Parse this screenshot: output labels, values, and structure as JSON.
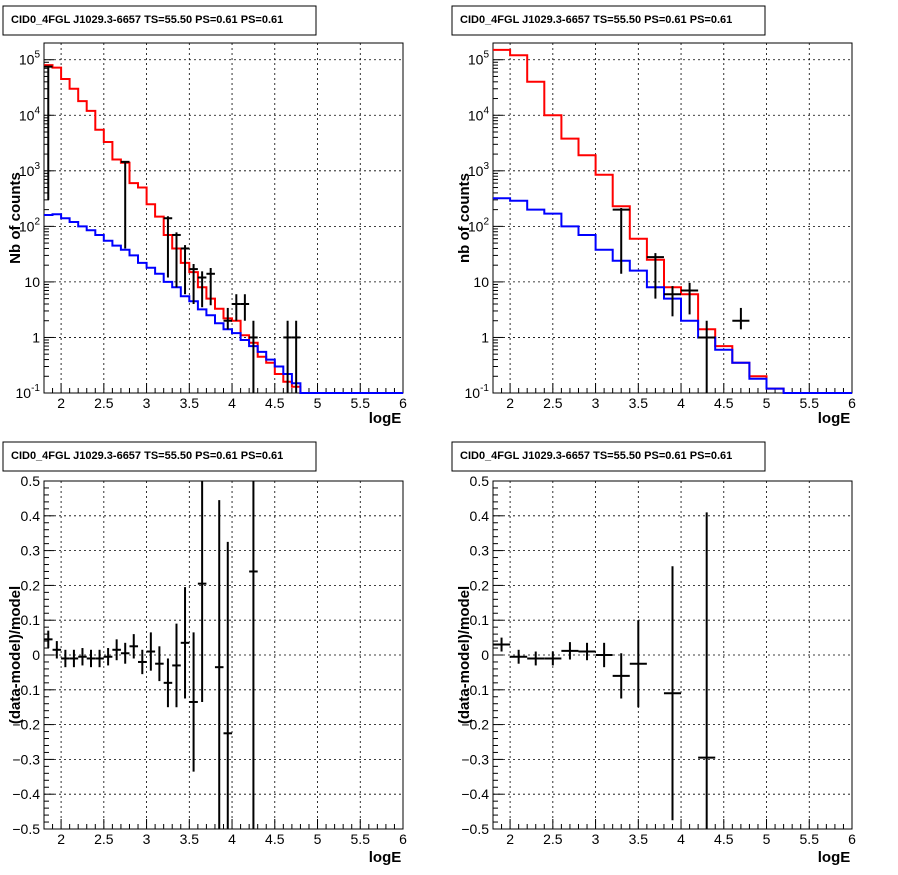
{
  "chart_data": [
    {
      "type": "line",
      "panel": "top-left",
      "title": "CID0_4FGL J1029.3-6657 TS=55.50 PS=0.61 PS=0.61",
      "xlabel": "logE",
      "ylabel": "Nb of counts",
      "xlim": [
        1.8,
        6.0
      ],
      "ylim": [
        0.1,
        200000
      ],
      "yscale": "log",
      "grid": true,
      "x_ticks": [
        "2",
        "2.5",
        "3",
        "3.5",
        "4",
        "4.5",
        "5",
        "5.5",
        "6"
      ],
      "y_ticks": [
        {
          "label": "10",
          "sup": "-1"
        },
        {
          "label": "1",
          "sup": ""
        },
        {
          "label": "10",
          "sup": ""
        },
        {
          "label": "10",
          "sup": "2"
        },
        {
          "label": "10",
          "sup": "3"
        },
        {
          "label": "10",
          "sup": "4"
        },
        {
          "label": "10",
          "sup": "5"
        }
      ],
      "colors": {
        "total_model": "#ff0000",
        "background": "#0000ff",
        "data": "#000000"
      },
      "series": [
        {
          "kind": "step",
          "color": "#ff0000",
          "edges": [
            1.8,
            1.9,
            2.0,
            2.1,
            2.2,
            2.3,
            2.4,
            2.5,
            2.6,
            2.7,
            2.8,
            2.9,
            3.0,
            3.1,
            3.2,
            3.3,
            3.4,
            3.5,
            3.6,
            3.7,
            3.8,
            3.9,
            4.0,
            4.1,
            4.2,
            4.3,
            4.4,
            4.5,
            4.6,
            4.7,
            4.8,
            4.9,
            5.0,
            5.1,
            5.2,
            5.3,
            5.4,
            5.5,
            5.6,
            5.7,
            5.8,
            5.9,
            6.0
          ],
          "values": [
            80000,
            72000,
            45000,
            30000,
            18000,
            12000,
            5500,
            3300,
            1600,
            1400,
            600,
            500,
            250,
            150,
            70,
            40,
            22,
            15,
            8,
            5,
            3.3,
            2.2,
            2.0,
            1.1,
            0.8,
            0.45,
            0.35,
            0.22,
            0.16,
            0.13,
            0.1,
            0.1,
            0.1,
            0.1,
            0.1,
            0.1,
            0.1,
            0.1,
            0.1,
            0.1,
            0.1,
            0.1
          ]
        },
        {
          "kind": "step",
          "color": "#0000ff",
          "edges": [
            1.8,
            1.9,
            2.0,
            2.1,
            2.2,
            2.3,
            2.4,
            2.5,
            2.6,
            2.7,
            2.8,
            2.9,
            3.0,
            3.1,
            3.2,
            3.3,
            3.4,
            3.5,
            3.6,
            3.7,
            3.8,
            3.9,
            4.0,
            4.1,
            4.2,
            4.3,
            4.4,
            4.5,
            4.6,
            4.7,
            4.8,
            4.9,
            5.0,
            5.1,
            5.2,
            5.3,
            5.4,
            5.5,
            5.6,
            5.7,
            5.8,
            5.9,
            6.0
          ],
          "values": [
            160,
            165,
            140,
            120,
            100,
            85,
            70,
            55,
            45,
            38,
            30,
            22,
            18,
            14,
            10,
            8,
            5.5,
            4.5,
            3.2,
            2.5,
            1.8,
            1.4,
            1.2,
            0.9,
            0.7,
            0.55,
            0.4,
            0.3,
            0.22,
            0.15,
            0.1,
            0.1,
            0.1,
            0.1,
            0.1,
            0.1,
            0.1,
            0.1,
            0.1,
            0.1,
            0.1,
            0.1
          ]
        }
      ],
      "points": [
        {
          "x": 1.85,
          "y": 75000,
          "xerr": 0.05,
          "yerr_lo": 74700,
          "yerr_hi": 75300
        },
        {
          "x": 2.75,
          "y": 1450,
          "xerr": 0.05,
          "yerr_lo": 1410,
          "yerr_hi": 1490
        },
        {
          "x": 3.25,
          "y": 140,
          "xerr": 0.05,
          "yerr_lo": 128,
          "yerr_hi": 152
        },
        {
          "x": 3.35,
          "y": 70,
          "xerr": 0.05,
          "yerr_lo": 62,
          "yerr_hi": 78
        },
        {
          "x": 3.45,
          "y": 40,
          "xerr": 0.05,
          "yerr_lo": 34,
          "yerr_hi": 46
        },
        {
          "x": 3.55,
          "y": 17,
          "xerr": 0.05,
          "yerr_lo": 13,
          "yerr_hi": 21
        },
        {
          "x": 3.65,
          "y": 12,
          "xerr": 0.05,
          "yerr_lo": 8.5,
          "yerr_hi": 15.5
        },
        {
          "x": 3.75,
          "y": 14,
          "xerr": 0.05,
          "yerr_lo": 10.2,
          "yerr_hi": 17.8
        },
        {
          "x": 3.95,
          "y": 2,
          "xerr": 0.05,
          "yerr_lo": 0.6,
          "yerr_hi": 3.4
        },
        {
          "x": 4.05,
          "y": 4,
          "xerr": 0.05,
          "yerr_lo": 2.0,
          "yerr_hi": 6.0
        },
        {
          "x": 4.15,
          "y": 4,
          "xerr": 0.05,
          "yerr_lo": 2.0,
          "yerr_hi": 6.0
        },
        {
          "x": 4.25,
          "y": 1,
          "xerr": 0.05,
          "yerr_lo": 0.99,
          "yerr_hi": 2.0
        },
        {
          "x": 4.65,
          "y": 1,
          "xerr": 0.05,
          "yerr_lo": 0.99,
          "yerr_hi": 2.0
        },
        {
          "x": 4.75,
          "y": 1,
          "xerr": 0.05,
          "yerr_lo": 0.99,
          "yerr_hi": 2.0
        }
      ]
    },
    {
      "type": "line",
      "panel": "top-right",
      "title": "CID0_4FGL J1029.3-6657 TS=55.50 PS=0.61 PS=0.61",
      "xlabel": "logE",
      "ylabel": "nb of counts",
      "xlim": [
        1.8,
        6.0
      ],
      "ylim": [
        0.1,
        200000
      ],
      "yscale": "log",
      "grid": true,
      "x_ticks": [
        "2",
        "2.5",
        "3",
        "3.5",
        "4",
        "4.5",
        "5",
        "5.5",
        "6"
      ],
      "y_ticks": [
        {
          "label": "10",
          "sup": "-1"
        },
        {
          "label": "1",
          "sup": ""
        },
        {
          "label": "10",
          "sup": ""
        },
        {
          "label": "10",
          "sup": "2"
        },
        {
          "label": "10",
          "sup": "3"
        },
        {
          "label": "10",
          "sup": "4"
        },
        {
          "label": "10",
          "sup": "5"
        }
      ],
      "series": [
        {
          "kind": "step",
          "color": "#ff0000",
          "edges": [
            1.8,
            2.0,
            2.2,
            2.4,
            2.6,
            2.8,
            3.0,
            3.2,
            3.4,
            3.6,
            3.8,
            4.0,
            4.2,
            4.4,
            4.6,
            4.8,
            5.0,
            5.2,
            5.4,
            5.6,
            5.8,
            6.0
          ],
          "values": [
            150000,
            120000,
            40000,
            10000,
            3800,
            1900,
            850,
            230,
            60,
            25,
            8,
            6,
            1.4,
            0.7,
            0.35,
            0.2,
            0.12,
            0.1,
            0.1,
            0.1,
            0.1
          ]
        },
        {
          "kind": "step",
          "color": "#0000ff",
          "edges": [
            1.8,
            2.0,
            2.2,
            2.4,
            2.6,
            2.8,
            3.0,
            3.2,
            3.4,
            3.6,
            3.8,
            4.0,
            4.2,
            4.4,
            4.6,
            4.8,
            5.0,
            5.2,
            5.4,
            5.6,
            5.8,
            6.0
          ],
          "values": [
            320,
            290,
            200,
            170,
            100,
            70,
            38,
            24,
            16,
            8,
            5,
            2,
            1,
            0.6,
            0.35,
            0.18,
            0.12,
            0.1,
            0.1,
            0.1,
            0.1
          ]
        }
      ],
      "points": [
        {
          "x": 3.3,
          "y": 200,
          "xerr": 0.1,
          "yerr_lo": 186,
          "yerr_hi": 214
        },
        {
          "x": 3.7,
          "y": 28,
          "xerr": 0.1,
          "yerr_lo": 23,
          "yerr_hi": 33
        },
        {
          "x": 3.9,
          "y": 6,
          "xerr": 0.1,
          "yerr_lo": 3.6,
          "yerr_hi": 8.4
        },
        {
          "x": 4.1,
          "y": 7,
          "xerr": 0.1,
          "yerr_lo": 4.4,
          "yerr_hi": 9.6
        },
        {
          "x": 4.3,
          "y": 1,
          "xerr": 0.1,
          "yerr_lo": 0.99,
          "yerr_hi": 2.0
        },
        {
          "x": 4.7,
          "y": 2,
          "xerr": 0.1,
          "yerr_lo": 0.6,
          "yerr_hi": 3.4
        }
      ]
    },
    {
      "type": "scatter",
      "panel": "bottom-left",
      "title": "CID0_4FGL J1029.3-6657 TS=55.50 PS=0.61 PS=0.61",
      "xlabel": "logE",
      "ylabel": "(data-model)/model",
      "xlim": [
        1.8,
        6.0
      ],
      "ylim": [
        -0.5,
        0.5
      ],
      "yscale": "linear",
      "grid": true,
      "x_ticks": [
        "2",
        "2.5",
        "3",
        "3.5",
        "4",
        "4.5",
        "5",
        "5.5",
        "6"
      ],
      "y_ticks": [
        {
          "label": "−0.5",
          "sup": ""
        },
        {
          "label": "−0.4",
          "sup": ""
        },
        {
          "label": "−0.3",
          "sup": ""
        },
        {
          "label": "−0.2",
          "sup": ""
        },
        {
          "label": "−0.1",
          "sup": ""
        },
        {
          "label": "0",
          "sup": ""
        },
        {
          "label": "0.1",
          "sup": ""
        },
        {
          "label": "0.2",
          "sup": ""
        },
        {
          "label": "0.3",
          "sup": ""
        },
        {
          "label": "0.4",
          "sup": ""
        },
        {
          "label": "0.5",
          "sup": ""
        }
      ],
      "points": [
        {
          "x": 1.85,
          "y": 0.045,
          "xerr": 0.05,
          "yerr": 0.025
        },
        {
          "x": 1.95,
          "y": 0.015,
          "xerr": 0.05,
          "yerr": 0.025
        },
        {
          "x": 2.05,
          "y": -0.01,
          "xerr": 0.05,
          "yerr": 0.025
        },
        {
          "x": 2.15,
          "y": -0.01,
          "xerr": 0.05,
          "yerr": 0.025
        },
        {
          "x": 2.25,
          "y": -0.005,
          "xerr": 0.05,
          "yerr": 0.025
        },
        {
          "x": 2.35,
          "y": -0.01,
          "xerr": 0.05,
          "yerr": 0.025
        },
        {
          "x": 2.45,
          "y": -0.01,
          "xerr": 0.05,
          "yerr": 0.025
        },
        {
          "x": 2.55,
          "y": -0.005,
          "xerr": 0.05,
          "yerr": 0.025
        },
        {
          "x": 2.65,
          "y": 0.015,
          "xerr": 0.05,
          "yerr": 0.03
        },
        {
          "x": 2.75,
          "y": 0.005,
          "xerr": 0.05,
          "yerr": 0.03
        },
        {
          "x": 2.85,
          "y": 0.025,
          "xerr": 0.05,
          "yerr": 0.035
        },
        {
          "x": 2.95,
          "y": -0.02,
          "xerr": 0.05,
          "yerr": 0.035
        },
        {
          "x": 3.05,
          "y": 0.01,
          "xerr": 0.05,
          "yerr": 0.055
        },
        {
          "x": 3.15,
          "y": -0.025,
          "xerr": 0.05,
          "yerr": 0.05
        },
        {
          "x": 3.25,
          "y": -0.08,
          "xerr": 0.05,
          "yerr": 0.07
        },
        {
          "x": 3.35,
          "y": -0.03,
          "xerr": 0.05,
          "yerr": 0.12
        },
        {
          "x": 3.45,
          "y": 0.035,
          "xerr": 0.05,
          "yerr": 0.16
        },
        {
          "x": 3.55,
          "y": -0.135,
          "xerr": 0.05,
          "yerr": 0.2
        },
        {
          "x": 3.65,
          "y": 0.205,
          "xerr": 0.05,
          "yerr": 0.34
        },
        {
          "x": 3.85,
          "y": -0.035,
          "xerr": 0.05,
          "yerr": 0.48
        },
        {
          "x": 3.95,
          "y": -0.225,
          "xerr": 0.05,
          "yerr": 0.55
        },
        {
          "x": 4.25,
          "y": 0.24,
          "xerr": 0.05,
          "yerr": 0.8
        }
      ]
    },
    {
      "type": "scatter",
      "panel": "bottom-right",
      "title": "CID0_4FGL J1029.3-6657 TS=55.50 PS=0.61 PS=0.61",
      "xlabel": "logE",
      "ylabel": "(data-model)/model",
      "xlim": [
        1.8,
        6.0
      ],
      "ylim": [
        -0.5,
        0.5
      ],
      "yscale": "linear",
      "grid": true,
      "x_ticks": [
        "2",
        "2.5",
        "3",
        "3.5",
        "4",
        "4.5",
        "5",
        "5.5",
        "6"
      ],
      "y_ticks": [
        {
          "label": "−0.5",
          "sup": ""
        },
        {
          "label": "−0.4",
          "sup": ""
        },
        {
          "label": "−0.3",
          "sup": ""
        },
        {
          "label": "−0.2",
          "sup": ""
        },
        {
          "label": "−0.1",
          "sup": ""
        },
        {
          "label": "0",
          "sup": ""
        },
        {
          "label": "0.1",
          "sup": ""
        },
        {
          "label": "0.2",
          "sup": ""
        },
        {
          "label": "0.3",
          "sup": ""
        },
        {
          "label": "0.4",
          "sup": ""
        },
        {
          "label": "0.5",
          "sup": ""
        }
      ],
      "points": [
        {
          "x": 1.9,
          "y": 0.03,
          "xerr": 0.1,
          "yerr": 0.02
        },
        {
          "x": 2.1,
          "y": -0.005,
          "xerr": 0.1,
          "yerr": 0.02
        },
        {
          "x": 2.3,
          "y": -0.01,
          "xerr": 0.1,
          "yerr": 0.02
        },
        {
          "x": 2.5,
          "y": -0.01,
          "xerr": 0.1,
          "yerr": 0.02
        },
        {
          "x": 2.7,
          "y": 0.012,
          "xerr": 0.1,
          "yerr": 0.025
        },
        {
          "x": 2.9,
          "y": 0.01,
          "xerr": 0.1,
          "yerr": 0.025
        },
        {
          "x": 3.1,
          "y": 0.0,
          "xerr": 0.1,
          "yerr": 0.035
        },
        {
          "x": 3.3,
          "y": -0.06,
          "xerr": 0.1,
          "yerr": 0.065
        },
        {
          "x": 3.5,
          "y": -0.025,
          "xerr": 0.1,
          "yerr": 0.125
        },
        {
          "x": 3.9,
          "y": -0.11,
          "xerr": 0.1,
          "yerr": 0.365
        },
        {
          "x": 4.3,
          "y": -0.295,
          "xerr": 0.1,
          "yerr": 0.705
        }
      ]
    }
  ]
}
